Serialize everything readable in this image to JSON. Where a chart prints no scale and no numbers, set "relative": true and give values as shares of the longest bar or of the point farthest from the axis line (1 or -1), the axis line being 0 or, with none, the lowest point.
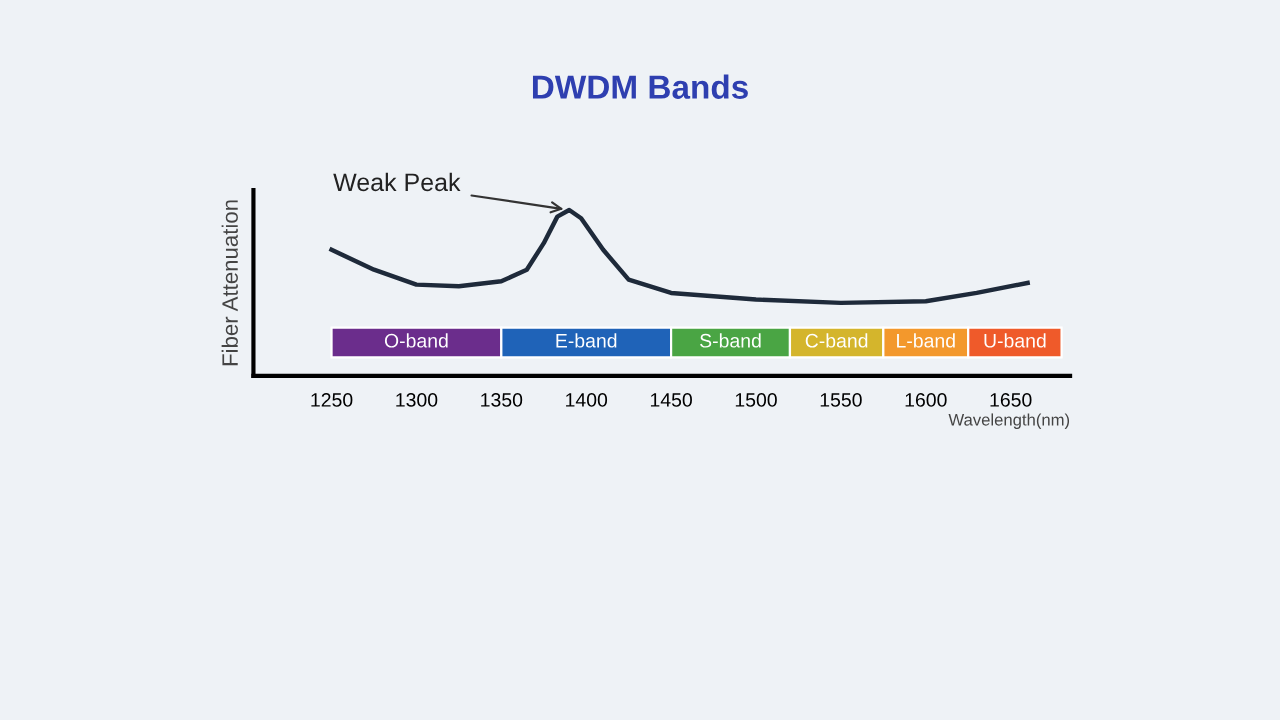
{
  "chart_data": {
    "type": "line",
    "title": "DWDM Bands",
    "ylabel": "Fiber Attenuation",
    "xlabel": "Wavelength(nm)",
    "relative": true,
    "xlim": [
      1204,
      1685
    ],
    "xticks": [
      1250,
      1300,
      1350,
      1400,
      1450,
      1500,
      1550,
      1600,
      1650
    ],
    "grid": false,
    "legend": false,
    "marker": "none",
    "line_style": "solid",
    "x": [
      1250,
      1275,
      1300,
      1325,
      1350,
      1365,
      1375,
      1383,
      1390,
      1397,
      1410,
      1425,
      1450,
      1500,
      1550,
      1600,
      1630,
      1660
    ],
    "series": [
      {
        "color": "#1e2a3a",
        "values": [
          0.76,
          0.64,
          0.55,
          0.54,
          0.57,
          0.64,
          0.8,
          0.96,
          1.0,
          0.95,
          0.76,
          0.58,
          0.5,
          0.46,
          0.44,
          0.45,
          0.5,
          0.56
        ]
      }
    ],
    "annotations": [
      {
        "text": "Weak Peak",
        "x": 1390,
        "y": 1.0
      }
    ],
    "bands": [
      {
        "axis": "x",
        "from": 1250,
        "to": 1350,
        "label": "O-band",
        "color": "#6b2d8c"
      },
      {
        "axis": "x",
        "from": 1350,
        "to": 1450,
        "label": "E-band",
        "color": "#1f63b8"
      },
      {
        "axis": "x",
        "from": 1450,
        "to": 1520,
        "label": "S-band",
        "color": "#4aa544"
      },
      {
        "axis": "x",
        "from": 1520,
        "to": 1575,
        "label": "C-band",
        "color": "#d4b52c"
      },
      {
        "axis": "x",
        "from": 1575,
        "to": 1625,
        "label": "L-band",
        "color": "#f3982c"
      },
      {
        "axis": "x",
        "from": 1625,
        "to": 1680,
        "label": "U-band",
        "color": "#ef5a2a"
      }
    ]
  }
}
